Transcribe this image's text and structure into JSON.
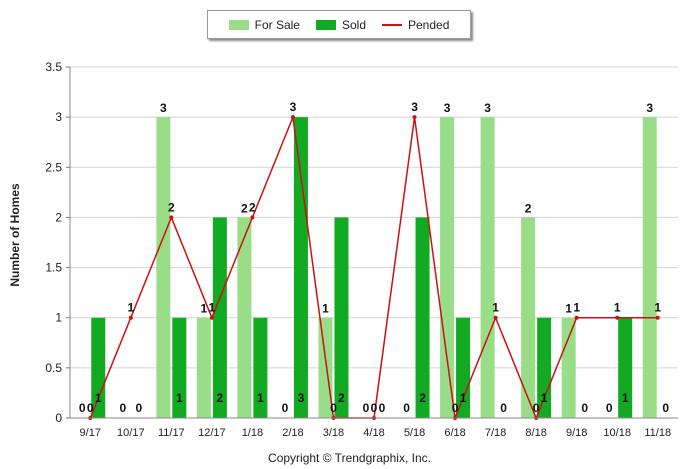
{
  "legend": {
    "for_sale": "For Sale",
    "sold": "Sold",
    "pended": "Pended"
  },
  "footer": {
    "copyright": "Copyright © Trendgraphix, Inc."
  },
  "colors": {
    "for_sale": "#99dd88",
    "sold": "#11aa22",
    "pended": "#cc1111",
    "grid": "#d4d4d4"
  },
  "chart_data": {
    "type": "bar",
    "ylabel": "Number of Homes",
    "xlabel": "",
    "ylim": [
      0,
      3.5
    ],
    "yticks": [
      "0",
      "0.5",
      "1",
      "1.5",
      "2",
      "2.5",
      "3",
      "3.5"
    ],
    "grid": true,
    "legend_position": "top",
    "categories": [
      "9/17",
      "10/17",
      "11/17",
      "12/17",
      "1/18",
      "2/18",
      "3/18",
      "4/18",
      "5/18",
      "6/18",
      "7/18",
      "8/18",
      "9/18",
      "10/18",
      "11/18"
    ],
    "series": [
      {
        "name": "For Sale",
        "kind": "bar",
        "values": [
          0,
          0,
          3,
          1,
          2,
          0,
          1,
          0,
          0,
          3,
          3,
          2,
          1,
          0,
          3
        ]
      },
      {
        "name": "Sold",
        "kind": "bar",
        "values": [
          1,
          0,
          1,
          2,
          1,
          3,
          2,
          0,
          2,
          1,
          0,
          1,
          0,
          1,
          0
        ]
      },
      {
        "name": "Pended",
        "kind": "line",
        "values": [
          0,
          1,
          2,
          1,
          2,
          3,
          0,
          0,
          3,
          0,
          1,
          0,
          1,
          1,
          1
        ]
      }
    ]
  }
}
